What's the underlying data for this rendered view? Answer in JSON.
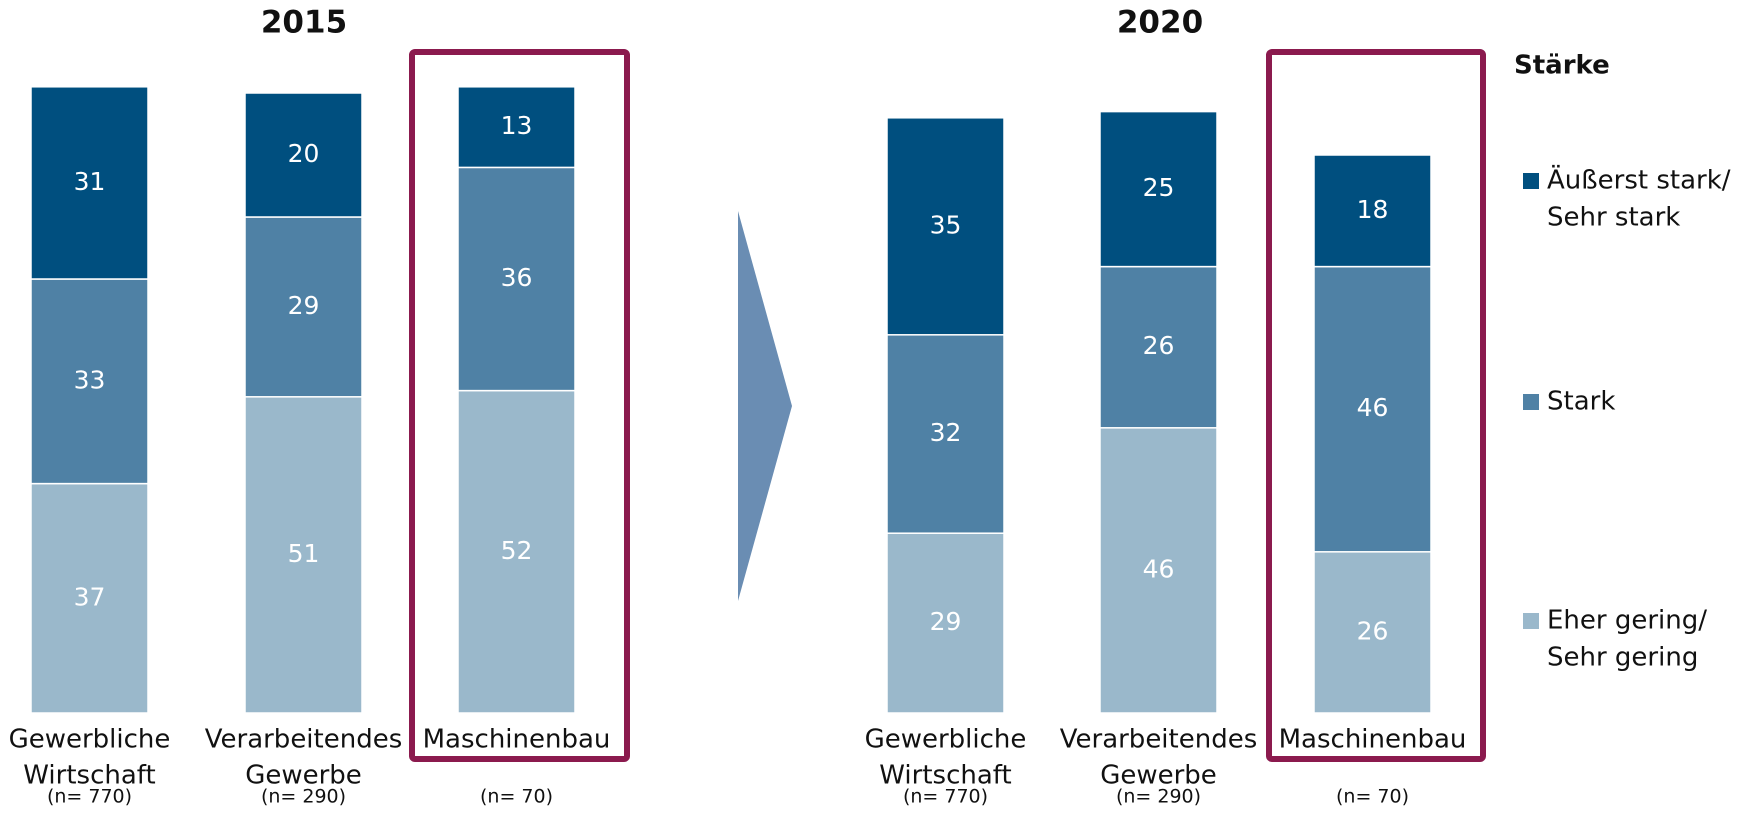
{
  "chart_data": [
    {
      "type": "stacked_bar",
      "title": "2015",
      "categories": [
        [
          "Gewerbliche",
          "Wirtschaft"
        ],
        [
          "Verarbeitendes",
          "Gewerbe"
        ],
        [
          "Maschinenbau"
        ]
      ],
      "sample_sizes": [
        "(n= 770)",
        "(n= 290)",
        "(n= 70)"
      ],
      "ylim": [
        0,
        100
      ],
      "highlight": 2,
      "series": [
        {
          "name": [
            "Äußerst stark/",
            "Sehr stark"
          ],
          "color": "#004f7f",
          "values": [
            31,
            20,
            13
          ]
        },
        {
          "name": [
            "Stark"
          ],
          "color": "#4f81a5",
          "values": [
            33,
            29,
            36
          ]
        },
        {
          "name": [
            "Eher gering/",
            "Sehr gering"
          ],
          "color": "#9ab8cb",
          "values": [
            37,
            51,
            52
          ]
        }
      ]
    },
    {
      "type": "stacked_bar",
      "title": "2020",
      "categories": [
        [
          "Gewerbliche",
          "Wirtschaft"
        ],
        [
          "Verarbeitendes",
          "Gewerbe"
        ],
        [
          "Maschinenbau"
        ]
      ],
      "sample_sizes": [
        "(n= 770)",
        "(n= 290)",
        "(n= 70)"
      ],
      "ylim": [
        0,
        100
      ],
      "highlight": 2,
      "legend_title": "Stärke",
      "series": [
        {
          "name": [
            "Äußerst stark/",
            "Sehr stark"
          ],
          "color": "#004f7f",
          "values": [
            35,
            25,
            18
          ]
        },
        {
          "name": [
            "Stark"
          ],
          "color": "#4f81a5",
          "values": [
            32,
            26,
            46
          ]
        },
        {
          "name": [
            "Eher gering/",
            "Sehr gering"
          ],
          "color": "#9ab8cb",
          "values": [
            29,
            46,
            26
          ]
        }
      ]
    }
  ]
}
